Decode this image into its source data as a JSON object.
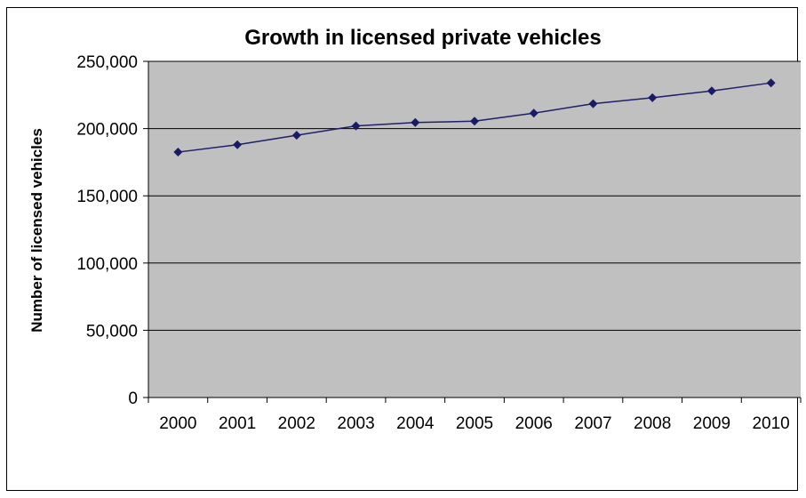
{
  "chart_data": {
    "type": "line",
    "title": "Growth in licensed private vehicles",
    "xlabel": "",
    "ylabel": "Number of licensed vehicles",
    "categories": [
      "2000",
      "2001",
      "2002",
      "2003",
      "2004",
      "2005",
      "2006",
      "2007",
      "2008",
      "2009",
      "2010"
    ],
    "series": [
      {
        "values": [
          182500,
          188000,
          195000,
          202000,
          204500,
          205500,
          211500,
          218500,
          223000,
          228000,
          234000
        ]
      }
    ],
    "ylim": [
      0,
      250000
    ],
    "yticks": [
      "0",
      "50,000",
      "100,000",
      "150,000",
      "200,000",
      "250,000"
    ],
    "grid": "horizontal",
    "legend": "none",
    "colors": {
      "plot_background": "#c0c0c0",
      "series_line": "#1f1f6b",
      "marker": "#1a1a66",
      "gridline": "#000000"
    }
  }
}
